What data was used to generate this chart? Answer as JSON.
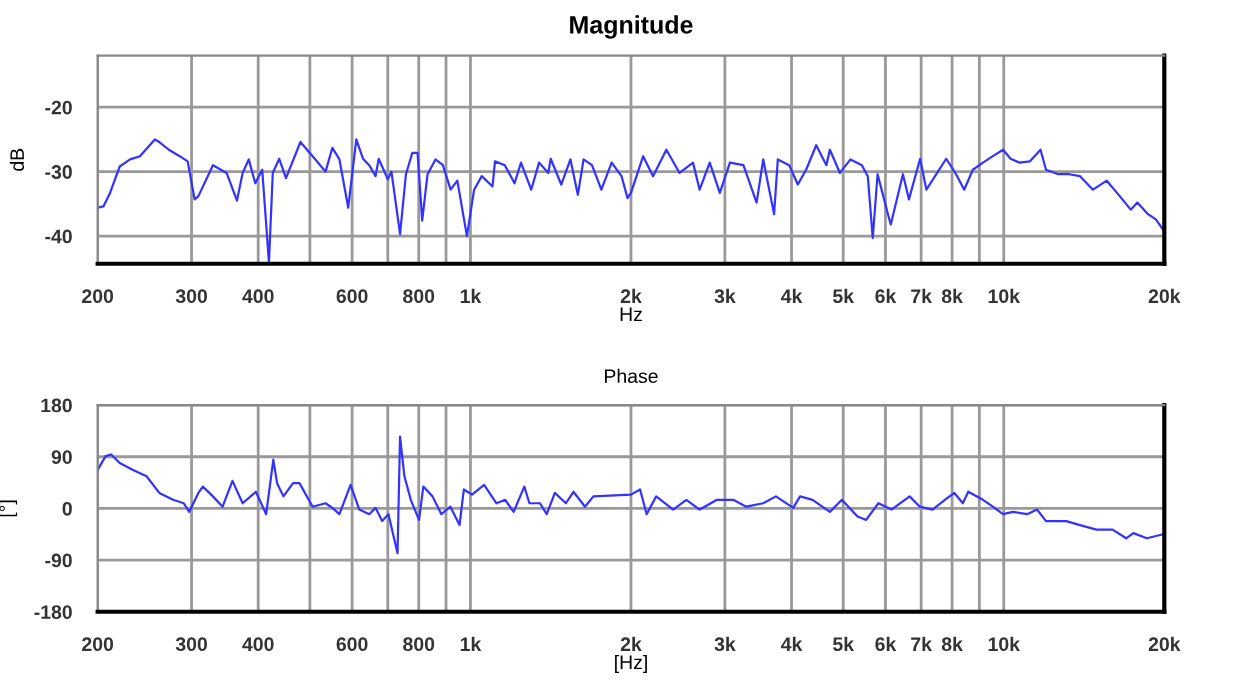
{
  "chart_data": [
    {
      "type": "line",
      "title": "Magnitude",
      "xlabel": "Hz",
      "ylabel": "dB",
      "log": "x",
      "grid": true,
      "xlim": [
        200,
        20000
      ],
      "ylim": [
        -44.3,
        -12
      ],
      "yticks": [
        -40,
        -30,
        -20
      ],
      "xticks": [
        200,
        300,
        400,
        {
          "value": 500,
          "label": null
        },
        600,
        {
          "value": 700,
          "label": null
        },
        800,
        {
          "value": 900,
          "label": null
        },
        {
          "value": 1000,
          "label": "1k"
        },
        {
          "value": 2000,
          "label": "2k"
        },
        {
          "value": 3000,
          "label": "3k"
        },
        {
          "value": 4000,
          "label": "4k"
        },
        {
          "value": 5000,
          "label": "5k"
        },
        {
          "value": 6000,
          "label": "6k"
        },
        {
          "value": 7000,
          "label": "7k"
        },
        {
          "value": 8000,
          "label": "8k"
        },
        {
          "value": 9000,
          "label": null
        },
        {
          "value": 10000,
          "label": "10k"
        },
        {
          "value": 20000,
          "label": "20k"
        }
      ],
      "series": [
        {
          "color": "#3333ff",
          "x": [
            200,
            205,
            211,
            220,
            230,
            240,
            256,
            261,
            272,
            285,
            295,
            304,
            309,
            329,
            349,
            365,
            374,
            384,
            395,
            407,
            419,
            426,
            438,
            451,
            480,
            506,
            535,
            551,
            568,
            590,
            611,
            629,
            646,
            664,
            673,
            700,
            711,
            738,
            757,
            778,
            796,
            812,
            831,
            860,
            888,
            918,
            945,
            985,
            1016,
            1050,
            1100,
            1112,
            1160,
            1210,
            1244,
            1300,
            1345,
            1400,
            1414,
            1480,
            1540,
            1590,
            1630,
            1690,
            1760,
            1840,
            1920,
            1970,
            2000,
            2108,
            2200,
            2330,
            2467,
            2614,
            2690,
            2810,
            2935,
            3066,
            3250,
            3440,
            3540,
            3710,
            3770,
            3960,
            4110,
            4260,
            4450,
            4650,
            4720,
            4930,
            5160,
            5420,
            5560,
            5680,
            5800,
            6060,
            6140,
            6470,
            6640,
            6970,
            7160,
            7800,
            8140,
            8430,
            8750,
            9140,
            9540,
            9970,
            10300,
            10700,
            11200,
            11720,
            12000,
            12660,
            13260,
            13900,
            14700,
            15600,
            16500,
            17300,
            17800,
            18640,
            19280,
            19900
          ],
          "values": [
            -35.6,
            -35.4,
            -33.3,
            -29.2,
            -28.1,
            -27.6,
            -25,
            -25.4,
            -26.6,
            -27.6,
            -28.4,
            -34.3,
            -33.8,
            -29,
            -30.2,
            -34.5,
            -30.2,
            -28.1,
            -31.8,
            -29.7,
            -44.1,
            -30.2,
            -28,
            -31,
            -25.4,
            -27.6,
            -30,
            -26.3,
            -28.1,
            -35.6,
            -25,
            -28,
            -29,
            -30.7,
            -28,
            -31.2,
            -30,
            -39.7,
            -30.4,
            -27.1,
            -27.1,
            -37.6,
            -30.4,
            -28.1,
            -29,
            -32.8,
            -31.4,
            -40,
            -32.8,
            -30.7,
            -32.3,
            -28.4,
            -29,
            -31.8,
            -28.6,
            -32.8,
            -28.6,
            -30.2,
            -28,
            -32,
            -28.1,
            -33.6,
            -28.1,
            -29,
            -32.8,
            -28.6,
            -30.7,
            -34.1,
            -33.3,
            -27.6,
            -30.7,
            -26.6,
            -30.2,
            -28.6,
            -32.8,
            -28.6,
            -33.3,
            -28.6,
            -29,
            -34.8,
            -28.1,
            -36.6,
            -28.1,
            -29,
            -32,
            -29.7,
            -25.9,
            -29,
            -26.6,
            -30.2,
            -28.1,
            -29,
            -30.7,
            -40.3,
            -30.4,
            -36.5,
            -38.2,
            -30.4,
            -34.3,
            -28,
            -32.8,
            -28,
            -30.4,
            -32.8,
            -29.7,
            -28.6,
            -27.6,
            -26.6,
            -28,
            -28.6,
            -28.4,
            -26.6,
            -29.7,
            -30.4,
            -30.4,
            -30.7,
            -32.8,
            -31.4,
            -33.8,
            -35.9,
            -34.8,
            -36.6,
            -37.4,
            -39
          ]
        }
      ]
    },
    {
      "type": "line",
      "title": "Phase",
      "xlabel": "[Hz]",
      "ylabel": "[°]",
      "log": "x",
      "grid": true,
      "xlim": [
        200,
        20000
      ],
      "ylim": [
        -180,
        180
      ],
      "yticks": [
        -180,
        -90,
        0,
        90,
        180
      ],
      "xticks": [
        200,
        300,
        400,
        {
          "value": 500,
          "label": null
        },
        600,
        {
          "value": 700,
          "label": null
        },
        800,
        {
          "value": 900,
          "label": null
        },
        {
          "value": 1000,
          "label": "1k"
        },
        {
          "value": 2000,
          "label": "2k"
        },
        {
          "value": 3000,
          "label": "3k"
        },
        {
          "value": 4000,
          "label": "4k"
        },
        {
          "value": 5000,
          "label": "5k"
        },
        {
          "value": 6000,
          "label": "6k"
        },
        {
          "value": 7000,
          "label": "7k"
        },
        {
          "value": 8000,
          "label": "8k"
        },
        {
          "value": 9000,
          "label": null
        },
        {
          "value": 10000,
          "label": "10k"
        },
        {
          "value": 20000,
          "label": "20k"
        }
      ],
      "series": [
        {
          "color": "#3333ff",
          "x": [
            200,
            207,
            212,
            220,
            233,
            247,
            261,
            277,
            290,
            297,
            309,
            315,
            329,
            343,
            358,
            374,
            396,
            414,
            427,
            434,
            446,
            465,
            478,
            506,
            535,
            551,
            568,
            596,
            619,
            646,
            664,
            683,
            702,
            730,
            738,
            752,
            773,
            801,
            816,
            849,
            882,
            917,
            954,
            972,
            1007,
            1061,
            1119,
            1162,
            1205,
            1262,
            1290,
            1350,
            1390,
            1440,
            1510,
            1560,
            1640,
            1700,
            2000,
            2080,
            2140,
            2230,
            2400,
            2540,
            2690,
            2900,
            3110,
            3290,
            3540,
            3740,
            4030,
            4150,
            4380,
            4720,
            4970,
            5320,
            5520,
            5820,
            6160,
            6660,
            6960,
            7350,
            7810,
            8080,
            8380,
            8580,
            9140,
            9540,
            9970,
            10400,
            11060,
            11550,
            12000,
            13100,
            13900,
            14920,
            16000,
            16960,
            17500,
            18550,
            19900
          ],
          "values": [
            67,
            91,
            94,
            79,
            67,
            56,
            27,
            15,
            9,
            -6,
            27,
            38,
            21,
            3,
            48,
            9,
            29,
            -10,
            85,
            44,
            21,
            44,
            44,
            3,
            9,
            1,
            -10,
            41,
            -2,
            -10,
            1,
            -22,
            -10,
            -78,
            125,
            56,
            15,
            -20,
            38,
            21,
            -10,
            3,
            -29,
            33,
            24,
            41,
            9,
            15,
            -6,
            38,
            9,
            9,
            -10,
            27,
            9,
            29,
            3,
            21,
            24,
            33,
            -10,
            21,
            -2,
            15,
            -2,
            15,
            15,
            3,
            9,
            21,
            1,
            21,
            15,
            -6,
            15,
            -14,
            -20,
            9,
            -2,
            21,
            3,
            -2,
            17,
            27,
            9,
            29,
            15,
            3,
            -10,
            -6,
            -10,
            -2,
            -22,
            -22,
            -29,
            -37,
            -37,
            -52,
            -43,
            -52,
            -45
          ]
        }
      ]
    }
  ]
}
